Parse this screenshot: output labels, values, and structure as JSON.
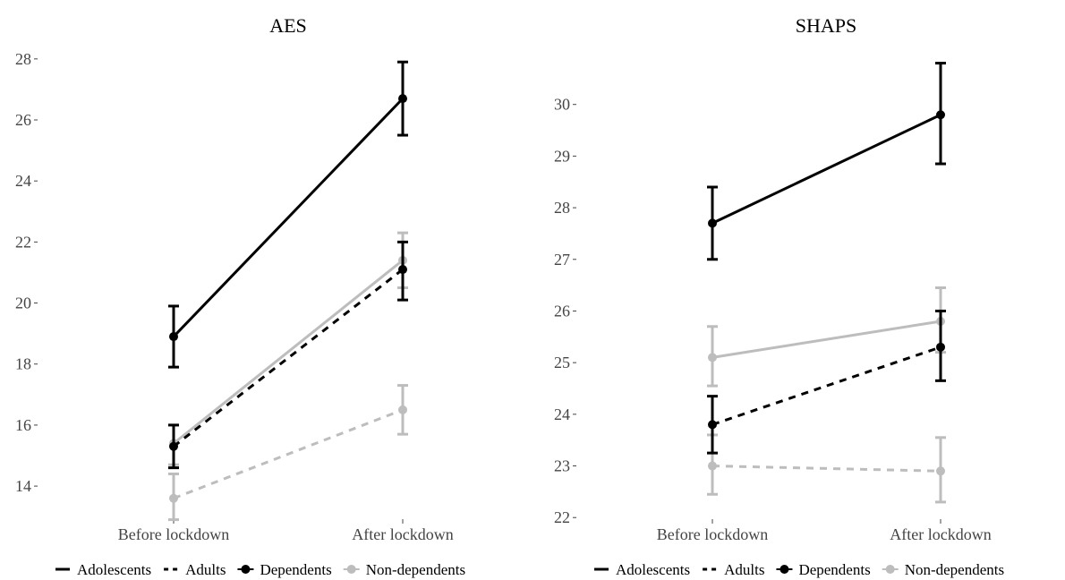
{
  "figure": {
    "legend": [
      {
        "key": "adolescents",
        "label": "Adolescents",
        "symbol": "solid-line"
      },
      {
        "key": "adults",
        "label": "Adults",
        "symbol": "dashed-line"
      },
      {
        "key": "dependents",
        "label": "Dependents",
        "symbol": "dot"
      },
      {
        "key": "non_dependents",
        "label": "Non-dependents",
        "symbol": "dot"
      }
    ]
  },
  "colors": {
    "dependents": "#000000",
    "non_dependents": "#bdbdbd",
    "axis_tick": "#444444"
  },
  "chart_data": [
    {
      "type": "line",
      "title": "AES",
      "xlabel": "",
      "ylabel": "",
      "categories": [
        "Before lockdown",
        "After lockdown"
      ],
      "ylim": [
        12.8,
        28.2
      ],
      "yticks": [
        14,
        16,
        18,
        20,
        22,
        24,
        26,
        28
      ],
      "grid": false,
      "legend_position": "bottom",
      "series": [
        {
          "group": "dependents",
          "age": "adolescents",
          "values": [
            18.9,
            26.7
          ],
          "err_low": [
            17.9,
            25.5
          ],
          "err_high": [
            19.9,
            27.9
          ]
        },
        {
          "group": "dependents",
          "age": "adults",
          "values": [
            15.3,
            21.1
          ],
          "err_low": [
            14.6,
            20.1
          ],
          "err_high": [
            16.0,
            22.0
          ]
        },
        {
          "group": "non_dependents",
          "age": "adolescents",
          "values": [
            15.4,
            21.4
          ],
          "err_low": [
            14.7,
            20.5
          ],
          "err_high": [
            16.0,
            22.3
          ]
        },
        {
          "group": "non_dependents",
          "age": "adults",
          "values": [
            13.6,
            16.5
          ],
          "err_low": [
            12.9,
            15.7
          ],
          "err_high": [
            14.4,
            17.3
          ]
        }
      ]
    },
    {
      "type": "line",
      "title": "SHAPS",
      "xlabel": "",
      "ylabel": "",
      "categories": [
        "Before lockdown",
        "After lockdown"
      ],
      "ylim": [
        21.9,
        31.0
      ],
      "yticks": [
        22,
        23,
        24,
        25,
        26,
        27,
        28,
        29,
        30
      ],
      "grid": false,
      "legend_position": "bottom",
      "series": [
        {
          "group": "dependents",
          "age": "adolescents",
          "values": [
            27.7,
            29.8
          ],
          "err_low": [
            27.0,
            28.85
          ],
          "err_high": [
            28.4,
            30.8
          ]
        },
        {
          "group": "dependents",
          "age": "adults",
          "values": [
            23.8,
            25.3
          ],
          "err_low": [
            23.25,
            24.65
          ],
          "err_high": [
            24.35,
            26.0
          ]
        },
        {
          "group": "non_dependents",
          "age": "adolescents",
          "values": [
            25.1,
            25.8
          ],
          "err_low": [
            24.55,
            25.2
          ],
          "err_high": [
            25.7,
            26.45
          ]
        },
        {
          "group": "non_dependents",
          "age": "adults",
          "values": [
            23.0,
            22.9
          ],
          "err_low": [
            22.45,
            22.3
          ],
          "err_high": [
            23.6,
            23.55
          ]
        }
      ]
    }
  ]
}
